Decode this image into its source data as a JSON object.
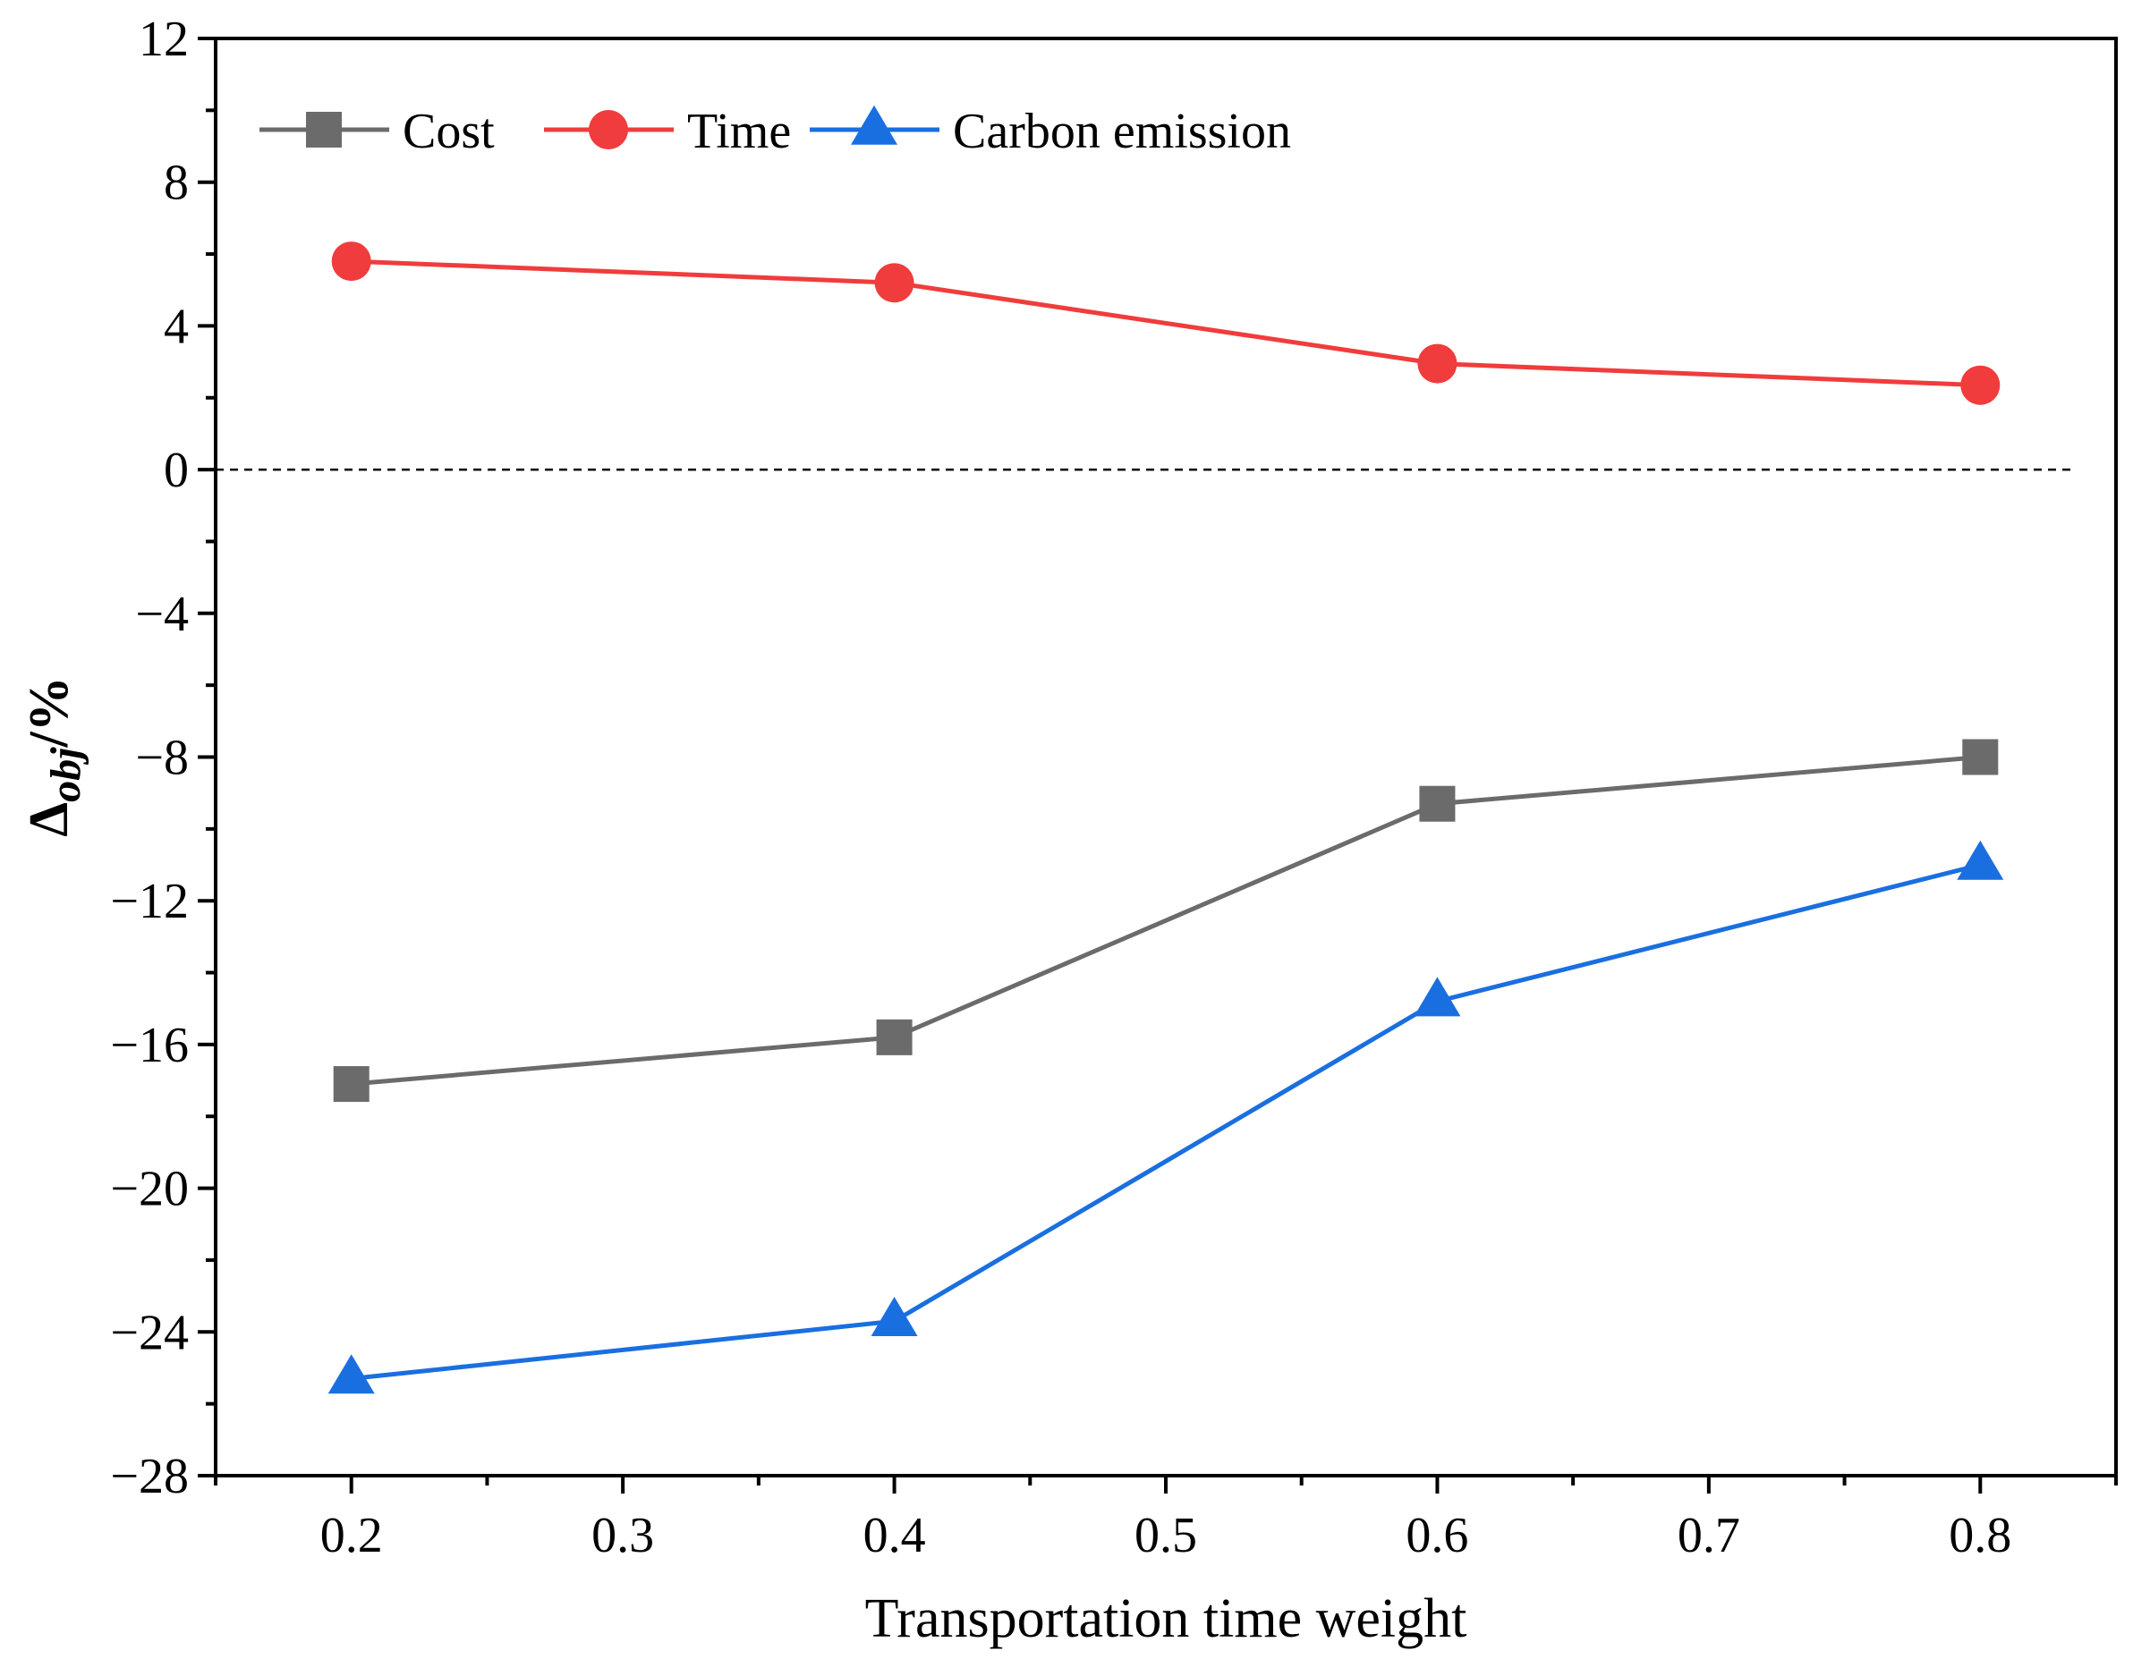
{
  "chart_data": {
    "type": "line",
    "title": "",
    "xlabel": "Transportation time weight",
    "ylabel": {
      "prefix": "Δ",
      "subscript": "obj",
      "suffix": "/%"
    },
    "xlim": [
      0.15,
      0.85
    ],
    "ylim": [
      -28,
      12
    ],
    "xticks": [
      0.2,
      0.3,
      0.4,
      0.5,
      0.6,
      0.7,
      0.8
    ],
    "xtick_labels": [
      "0.2",
      "0.3",
      "0.4",
      "0.5",
      "0.6",
      "0.7",
      "0.8"
    ],
    "yticks": [
      12,
      8,
      4,
      0,
      -4,
      -8,
      -12,
      -16,
      -20,
      -24,
      -28
    ],
    "ytick_labels": [
      "12",
      "8",
      "4",
      "0",
      "−4",
      "−8",
      "−12",
      "−16",
      "−20",
      "−24",
      "−28"
    ],
    "reference_line": 0,
    "grid": false,
    "legend_position": "top-left",
    "x": [
      0.2,
      0.4,
      0.6,
      0.8
    ],
    "series": [
      {
        "name": "Cost",
        "color": "#6b6b6b",
        "marker": "square",
        "values": [
          -17.1,
          -15.8,
          -9.3,
          -8.0
        ]
      },
      {
        "name": "Time",
        "color": "#f03c3c",
        "marker": "circle",
        "values": [
          5.8,
          5.2,
          2.95,
          2.35
        ]
      },
      {
        "name": "Carbon emission",
        "color": "#1a6fe0",
        "marker": "triangle",
        "values": [
          -25.3,
          -23.7,
          -14.8,
          -11.0
        ]
      }
    ]
  }
}
